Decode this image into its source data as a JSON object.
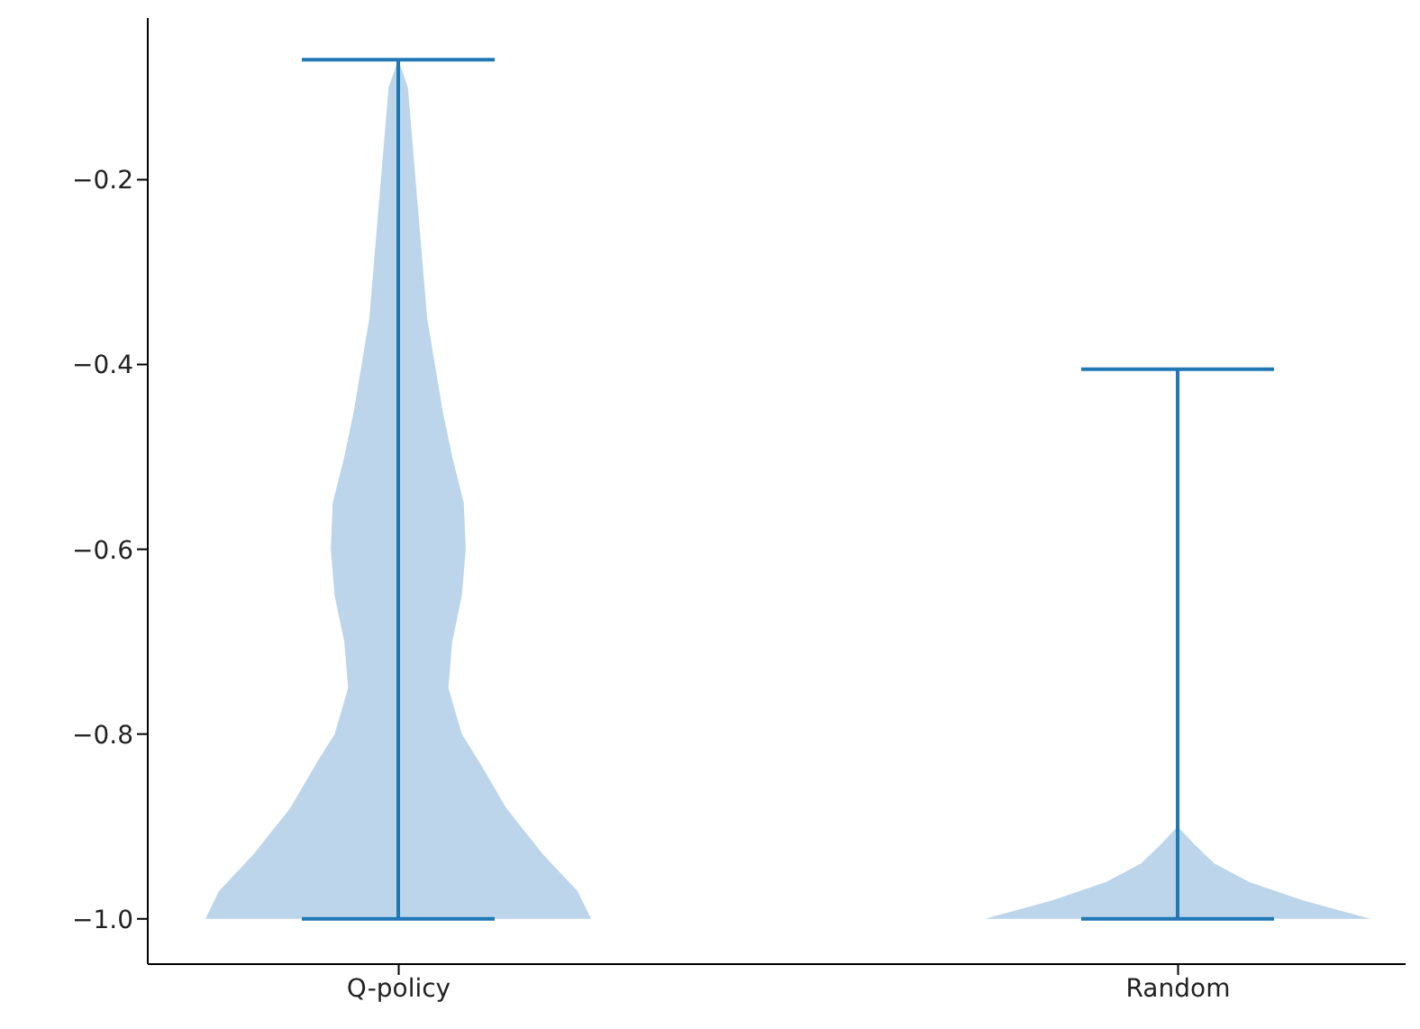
{
  "chart_data": {
    "type": "bar",
    "categories": [
      "Q-policy",
      "Random"
    ],
    "base": [
      -1.0,
      -1.0
    ],
    "values": [
      0.93,
      0.595
    ],
    "color": "#1f77b4",
    "ylim": [
      -1.049,
      -0.025
    ],
    "yticks": [
      {
        "value": -1.0,
        "label": "−1.0"
      },
      {
        "value": -0.8,
        "label": "−0.8"
      },
      {
        "value": -0.6,
        "label": "−0.6"
      },
      {
        "value": -0.4,
        "label": "−0.4"
      },
      {
        "value": -0.2,
        "label": "−0.2"
      }
    ],
    "grid": false
  }
}
